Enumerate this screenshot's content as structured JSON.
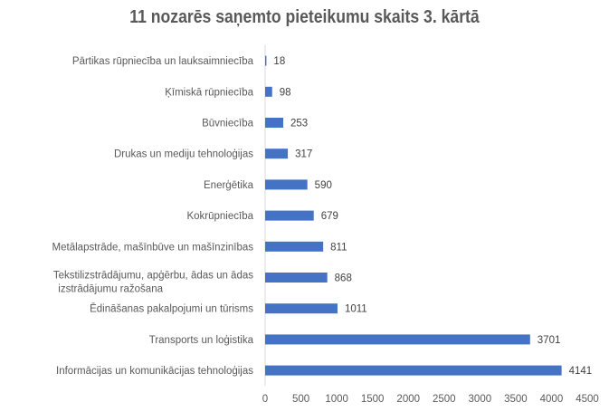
{
  "chart_data": {
    "type": "bar",
    "orientation": "horizontal",
    "title": "11 nozarēs saņemto pieteikumu skaits 3. kārtā",
    "categories": [
      "Pārtikas rūpniecība un lauksaimniecība",
      "Ķīmiskā rūpniecība",
      "Būvniecība",
      "Drukas un mediju tehnoloģijas",
      "Enerģētika",
      "Kokrūpniecība",
      "Metālapstrāde, mašīnbūve un mašīnzinības",
      "Tekstilizstrādājumu, apģērbu, ādas un ādas izstrādājumu ražošana",
      "Ēdināšanas pakalpojumi un tūrisms",
      "Transports un loģistika",
      "Informācijas un komunikācijas tehnoloģijas"
    ],
    "values": [
      18,
      98,
      253,
      317,
      590,
      679,
      811,
      868,
      1011,
      3701,
      4141
    ],
    "xlim": [
      0,
      4500
    ],
    "xticks": [
      0,
      500,
      1000,
      1500,
      2000,
      2500,
      3000,
      3500,
      4000,
      4500
    ],
    "grid": false,
    "legend": "none",
    "bar_color": "#4472C4",
    "data_labels": true
  }
}
